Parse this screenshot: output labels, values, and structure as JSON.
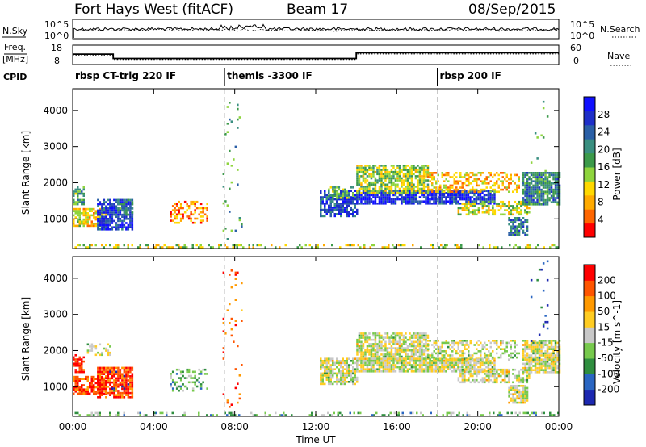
{
  "header": {
    "station": "Fort Hays West (fitACF)",
    "beam": "Beam 17",
    "date": "08/Sep/2015"
  },
  "top_panels": {
    "nsky_label": "N.Sky",
    "nsearch_label": "N.Search",
    "noise_ticks_left": [
      "10^5",
      "10^0"
    ],
    "noise_ticks_right": [
      "10^5",
      "10^0"
    ],
    "freq_label_line1": "Freq.",
    "freq_label_line2": "[MHz]",
    "freq_ticks": [
      "18",
      "8"
    ],
    "nave_label": "Nave",
    "nave_ticks": [
      "60",
      "0"
    ],
    "cpid_label": "CPID",
    "cpid_segments": [
      {
        "label": "rbsp CT-trig 220 IF",
        "start_hour": 0
      },
      {
        "label": "themis -3300 IF",
        "start_hour": 7.5
      },
      {
        "label": "rbsp 200 IF",
        "start_hour": 18
      }
    ],
    "freq_profile": [
      [
        0,
        13.5
      ],
      [
        2,
        13.5
      ],
      [
        2,
        10.5
      ],
      [
        14,
        10.5
      ],
      [
        14,
        14.5
      ],
      [
        24,
        14.5
      ]
    ],
    "nave_profile": [
      [
        0,
        28
      ],
      [
        2,
        28
      ],
      [
        2,
        16
      ],
      [
        14,
        16
      ],
      [
        14,
        33
      ],
      [
        24,
        33
      ]
    ]
  },
  "chart_data": [
    {
      "type": "heatmap",
      "quantity": "Power",
      "ylabel": "Slant Range [km]",
      "yticks": [
        "4000",
        "3000",
        "2000",
        "1000"
      ],
      "ylim": [
        180,
        4600
      ],
      "xlim_hours": [
        0,
        24
      ],
      "colorbar_label": "Power [dB]",
      "colorbar_ticks": [
        "28",
        "24",
        "20",
        "16",
        "12",
        "8",
        "4"
      ],
      "colorbar_colors": [
        "#ff0000",
        "#ff6600",
        "#ffaa00",
        "#ffd800",
        "#8ed43d",
        "#3c9a4a",
        "#3a8f80",
        "#2a5fa6",
        "#1e2fc8",
        "#1010ff"
      ],
      "regions": [
        {
          "t0": 0.0,
          "t1": 0.5,
          "r0": 1400,
          "r1": 1900,
          "level": 0.55,
          "density": 0.75
        },
        {
          "t0": 0.0,
          "t1": 1.6,
          "r0": 800,
          "r1": 1300,
          "level": 0.35,
          "density": 0.7
        },
        {
          "t0": 1.2,
          "t1": 2.9,
          "r0": 700,
          "r1": 1550,
          "level": 0.85,
          "density": 0.8
        },
        {
          "t0": 2.2,
          "t1": 2.9,
          "r0": 1100,
          "r1": 1550,
          "level": 0.6,
          "density": 0.6
        },
        {
          "t0": 4.8,
          "t1": 6.6,
          "r0": 900,
          "r1": 1500,
          "level": 0.2,
          "density": 0.35
        },
        {
          "t0": 12.2,
          "t1": 14.0,
          "r0": 1100,
          "r1": 1800,
          "level": 0.8,
          "density": 0.75
        },
        {
          "t0": 12.6,
          "t1": 13.8,
          "r0": 1600,
          "r1": 1900,
          "level": 0.5,
          "density": 0.6
        },
        {
          "t0": 14.0,
          "t1": 20.8,
          "r0": 1450,
          "r1": 1800,
          "level": 0.85,
          "density": 0.85
        },
        {
          "t0": 14.0,
          "t1": 17.5,
          "r0": 1700,
          "r1": 2500,
          "level": 0.45,
          "density": 0.75
        },
        {
          "t0": 17.5,
          "t1": 22.0,
          "r0": 1750,
          "r1": 2300,
          "level": 0.3,
          "density": 0.45
        },
        {
          "t0": 19.0,
          "t1": 22.5,
          "r0": 1100,
          "r1": 1500,
          "level": 0.4,
          "density": 0.55
        },
        {
          "t0": 21.5,
          "t1": 22.4,
          "r0": 550,
          "r1": 1050,
          "level": 0.7,
          "density": 0.75
        },
        {
          "t0": 22.2,
          "t1": 24.0,
          "r0": 1400,
          "r1": 2300,
          "level": 0.65,
          "density": 0.85
        },
        {
          "t0": 0.0,
          "t1": 24.0,
          "r0": 200,
          "r1": 300,
          "level": 0.4,
          "density": 0.3
        },
        {
          "t0": 7.4,
          "t1": 8.3,
          "r0": 300,
          "r1": 4300,
          "level": 0.6,
          "density": 0.05
        },
        {
          "t0": 22.6,
          "t1": 23.4,
          "r0": 1500,
          "r1": 4500,
          "level": 0.5,
          "density": 0.05
        }
      ]
    },
    {
      "type": "heatmap",
      "quantity": "Velocity",
      "ylabel": "Slant Range [km]",
      "yticks": [
        "4000",
        "3000",
        "2000",
        "1000"
      ],
      "ylim": [
        180,
        4600
      ],
      "xlim_hours": [
        0,
        24
      ],
      "colorbar_label": "Velocity [m s^-1]",
      "colorbar_ticks": [
        "200",
        "100",
        "50",
        "15",
        "-15",
        "-50",
        "-100",
        "-200"
      ],
      "colorbar_colors": [
        "#1c28b0",
        "#2a66c2",
        "#2f8e3f",
        "#77c94d",
        "#c8c8c8",
        "#ffcc22",
        "#ff9900",
        "#ff5500",
        "#ff0000"
      ],
      "regions": [
        {
          "t0": 0.0,
          "t1": 0.5,
          "r0": 1400,
          "r1": 1900,
          "level": 0.95,
          "density": 0.75
        },
        {
          "t0": 0.0,
          "t1": 1.6,
          "r0": 800,
          "r1": 1300,
          "level": 0.9,
          "density": 0.7
        },
        {
          "t0": 1.2,
          "t1": 2.9,
          "r0": 700,
          "r1": 1550,
          "level": 0.88,
          "density": 0.8
        },
        {
          "t0": 1.8,
          "t1": 2.8,
          "r0": 900,
          "r1": 1500,
          "level": 0.1,
          "density": 0.12
        },
        {
          "t0": 0.7,
          "t1": 1.8,
          "r0": 1900,
          "r1": 2200,
          "level": 0.5,
          "density": 0.35
        },
        {
          "t0": 4.8,
          "t1": 6.6,
          "r0": 900,
          "r1": 1500,
          "level": 0.35,
          "density": 0.35
        },
        {
          "t0": 12.2,
          "t1": 14.0,
          "r0": 1100,
          "r1": 1800,
          "level": 0.5,
          "density": 0.75
        },
        {
          "t0": 14.0,
          "t1": 20.8,
          "r0": 1450,
          "r1": 1800,
          "level": 0.5,
          "density": 0.85
        },
        {
          "t0": 14.0,
          "t1": 17.5,
          "r0": 1700,
          "r1": 2500,
          "level": 0.5,
          "density": 0.75
        },
        {
          "t0": 17.5,
          "t1": 22.0,
          "r0": 1750,
          "r1": 2300,
          "level": 0.5,
          "density": 0.45
        },
        {
          "t0": 19.0,
          "t1": 22.5,
          "r0": 1100,
          "r1": 1500,
          "level": 0.5,
          "density": 0.55
        },
        {
          "t0": 21.5,
          "t1": 22.4,
          "r0": 550,
          "r1": 1050,
          "level": 0.5,
          "density": 0.75
        },
        {
          "t0": 22.2,
          "t1": 24.0,
          "r0": 1400,
          "r1": 2300,
          "level": 0.5,
          "density": 0.85
        },
        {
          "t0": 0.0,
          "t1": 24.0,
          "r0": 200,
          "r1": 300,
          "level": 0.35,
          "density": 0.3
        },
        {
          "t0": 7.4,
          "t1": 8.3,
          "r0": 300,
          "r1": 4300,
          "level": 0.8,
          "density": 0.05
        },
        {
          "t0": 22.6,
          "t1": 23.4,
          "r0": 1500,
          "r1": 4500,
          "level": 0.1,
          "density": 0.05
        }
      ]
    }
  ],
  "time_axis": {
    "label": "Time UT",
    "ticks": [
      "00:00",
      "04:00",
      "08:00",
      "12:00",
      "16:00",
      "20:00",
      "00:00"
    ]
  }
}
